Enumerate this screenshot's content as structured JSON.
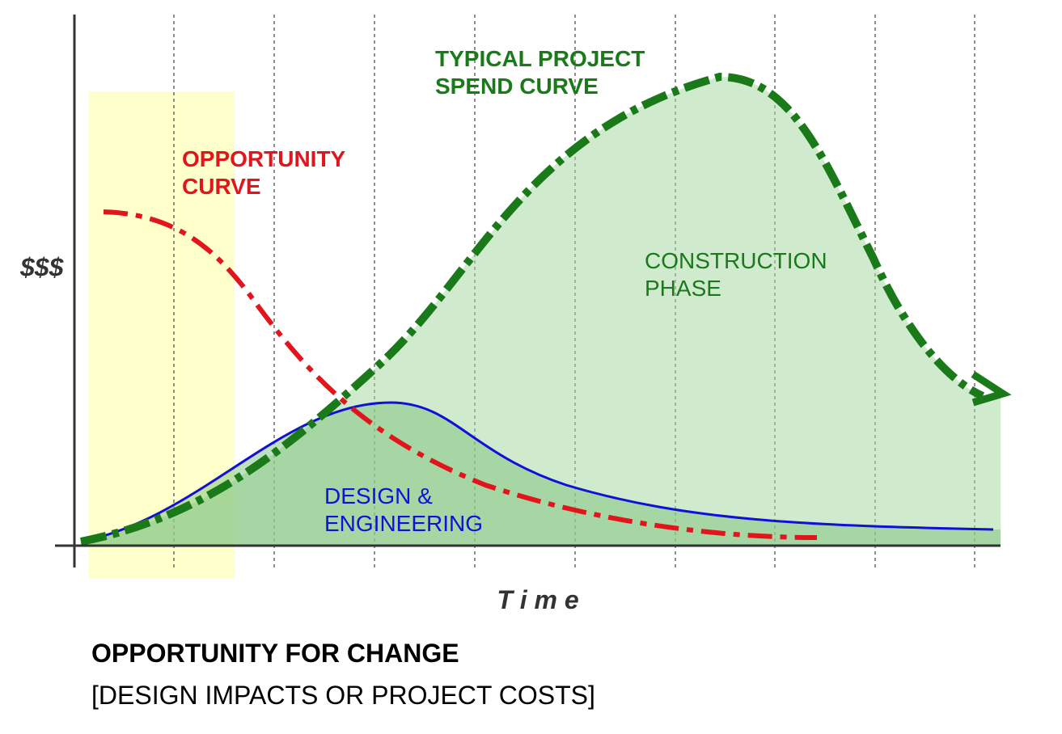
{
  "axes": {
    "y_label": "$$$",
    "x_label": "T i m e"
  },
  "annotations": {
    "opportunity_curve": [
      "OPPORTUNITY",
      "CURVE"
    ],
    "spend_curve": [
      "TYPICAL PROJECT",
      "SPEND CURVE"
    ],
    "construction_phase": [
      "CONSTRUCTION",
      "PHASE"
    ],
    "design_engineering": [
      "DESIGN &",
      "ENGINEERING"
    ]
  },
  "caption": {
    "title": "OPPORTUNITY FOR CHANGE",
    "subtitle": "[DESIGN IMPACTS OR PROJECT COSTS]"
  }
}
